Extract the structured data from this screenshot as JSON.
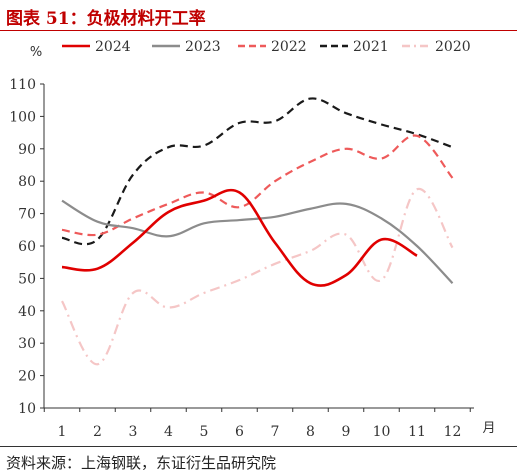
{
  "figure": {
    "title": "图表 51：负极材料开工率",
    "source": "资料来源：上海钢联，东证衍生品研究院"
  },
  "chart_data": {
    "type": "line",
    "title": "",
    "xlabel": "月",
    "ylabel": "%",
    "x": [
      1,
      2,
      3,
      4,
      5,
      6,
      7,
      8,
      9,
      10,
      11,
      12
    ],
    "ylim": [
      10,
      110
    ],
    "yticks": [
      10,
      20,
      30,
      40,
      50,
      60,
      70,
      80,
      90,
      100,
      110
    ],
    "grid": false,
    "legend_position": "top",
    "series": [
      {
        "name": "2024",
        "color": "#e00000",
        "dash": "solid",
        "values": [
          53.5,
          53,
          61,
          70.5,
          74,
          76.5,
          61,
          48.5,
          51,
          62,
          57,
          null
        ]
      },
      {
        "name": "2023",
        "color": "#8c8c8c",
        "dash": "solid",
        "values": [
          74,
          67.5,
          65.5,
          63,
          67,
          68,
          69,
          71.5,
          73,
          68.5,
          60,
          48.5
        ]
      },
      {
        "name": "2022",
        "color": "#ee5a5a",
        "dash": "dash",
        "values": [
          65,
          63.5,
          68.5,
          73,
          76.5,
          72,
          80,
          86,
          90,
          87,
          94,
          81
        ]
      },
      {
        "name": "2021",
        "color": "#1a1a1a",
        "dash": "dash",
        "values": [
          62.5,
          62,
          82,
          90.5,
          91,
          98,
          98.5,
          105.5,
          101,
          97.5,
          94.5,
          90.5
        ]
      },
      {
        "name": "2020",
        "color": "#f5c6c6",
        "dash": "dashdot",
        "values": [
          43,
          23.5,
          45.5,
          41,
          45.5,
          49.5,
          54.5,
          58.5,
          63.5,
          49.5,
          77.5,
          59.5
        ]
      }
    ]
  }
}
